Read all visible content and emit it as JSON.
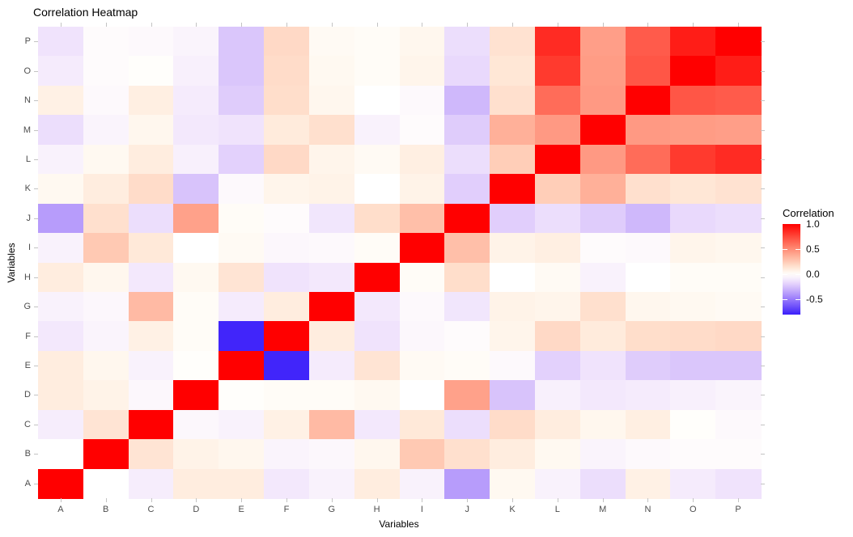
{
  "title": "Correlation Heatmap",
  "colors": {
    "background": "#ffffff",
    "axis_text": "#4d4d4d",
    "axis_title": "#000000",
    "tick_mark": "#c3c3c3",
    "heat_high": "#ff0000",
    "heat_mid": "#ffffff",
    "heat_low": "#3a1ffa"
  },
  "chart_data": {
    "type": "heatmap",
    "title": "Correlation Heatmap",
    "xlabel": "Variables",
    "ylabel": "Variables",
    "variables": [
      "A",
      "B",
      "C",
      "D",
      "E",
      "F",
      "G",
      "H",
      "I",
      "J",
      "K",
      "L",
      "M",
      "N",
      "O",
      "P"
    ],
    "row_order_top_to_bottom": [
      "P",
      "O",
      "N",
      "M",
      "L",
      "K",
      "J",
      "I",
      "H",
      "G",
      "F",
      "E",
      "D",
      "C",
      "B",
      "A"
    ],
    "color_domain": [
      -0.8,
      1.0
    ],
    "matrix": [
      [
        1.0,
        0.0,
        -0.08,
        0.1,
        0.1,
        -0.1,
        -0.06,
        0.1,
        -0.06,
        -0.38,
        0.04,
        -0.06,
        -0.14,
        0.08,
        -0.09,
        -0.12
      ],
      [
        0.0,
        1.0,
        0.14,
        0.07,
        0.05,
        -0.05,
        -0.04,
        0.05,
        0.26,
        0.16,
        0.1,
        0.04,
        -0.05,
        -0.03,
        -0.02,
        -0.02
      ],
      [
        -0.08,
        0.14,
        1.0,
        -0.04,
        -0.06,
        0.08,
        0.32,
        -0.1,
        0.12,
        -0.14,
        0.18,
        0.1,
        0.05,
        0.09,
        0.01,
        -0.03
      ],
      [
        0.1,
        0.07,
        -0.04,
        1.0,
        0.01,
        0.02,
        0.02,
        0.04,
        0.0,
        0.42,
        -0.24,
        -0.07,
        -0.1,
        -0.09,
        -0.07,
        -0.05
      ],
      [
        0.1,
        0.05,
        -0.06,
        0.01,
        1.0,
        -0.78,
        -0.09,
        0.14,
        0.03,
        0.02,
        -0.03,
        -0.19,
        -0.12,
        -0.21,
        -0.23,
        -0.23
      ],
      [
        -0.1,
        -0.05,
        0.08,
        0.02,
        -0.78,
        1.0,
        0.1,
        -0.12,
        -0.04,
        -0.02,
        0.06,
        0.19,
        0.11,
        0.17,
        0.18,
        0.19
      ],
      [
        -0.06,
        -0.04,
        0.32,
        0.02,
        -0.09,
        0.1,
        1.0,
        -0.1,
        -0.03,
        -0.11,
        0.07,
        0.06,
        0.16,
        0.05,
        0.04,
        0.03
      ],
      [
        0.1,
        0.05,
        -0.1,
        0.04,
        0.14,
        -0.12,
        -0.1,
        1.0,
        0.02,
        0.17,
        0.0,
        0.03,
        -0.06,
        0.0,
        0.02,
        0.02
      ],
      [
        -0.06,
        0.26,
        0.12,
        0.0,
        0.03,
        -0.04,
        -0.03,
        0.02,
        1.0,
        0.3,
        0.07,
        0.09,
        -0.02,
        -0.03,
        0.06,
        0.05
      ],
      [
        -0.38,
        0.16,
        -0.14,
        0.42,
        0.02,
        -0.02,
        -0.11,
        0.17,
        0.3,
        1.0,
        -0.2,
        -0.14,
        -0.21,
        -0.28,
        -0.16,
        -0.14
      ],
      [
        0.04,
        0.1,
        0.18,
        -0.24,
        -0.03,
        0.06,
        0.07,
        0.0,
        0.07,
        -0.2,
        1.0,
        0.24,
        0.36,
        0.16,
        0.13,
        0.15
      ],
      [
        -0.06,
        0.04,
        0.1,
        -0.07,
        -0.19,
        0.19,
        0.06,
        0.03,
        0.09,
        -0.14,
        0.24,
        1.0,
        0.45,
        0.62,
        0.8,
        0.85
      ],
      [
        -0.14,
        -0.05,
        0.05,
        -0.1,
        -0.12,
        0.11,
        0.16,
        -0.06,
        -0.02,
        -0.21,
        0.36,
        0.45,
        1.0,
        0.45,
        0.44,
        0.43
      ],
      [
        0.08,
        -0.03,
        0.09,
        -0.09,
        -0.21,
        0.17,
        0.05,
        0.0,
        -0.03,
        -0.28,
        0.16,
        0.62,
        0.45,
        1.0,
        0.7,
        0.68
      ],
      [
        -0.09,
        -0.02,
        0.01,
        -0.07,
        -0.23,
        0.18,
        0.04,
        0.02,
        0.06,
        -0.16,
        0.13,
        0.8,
        0.44,
        0.7,
        1.0,
        0.9
      ],
      [
        -0.12,
        -0.02,
        -0.03,
        -0.05,
        -0.23,
        0.19,
        0.03,
        0.02,
        0.05,
        -0.14,
        0.15,
        0.85,
        0.43,
        0.68,
        0.9,
        1.0
      ]
    ],
    "legend": {
      "title": "Correlation",
      "tick_values": [
        1.0,
        0.5,
        0.0,
        -0.5
      ],
      "tick_labels": [
        "1.0",
        "0.5",
        "0.0",
        "-0.5"
      ]
    },
    "grid": false,
    "legend_position": "right"
  }
}
